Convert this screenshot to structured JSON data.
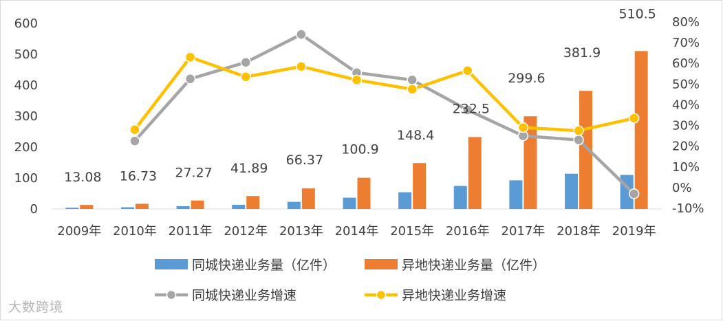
{
  "chart_data": {
    "type": "bar",
    "categories": [
      "2009年",
      "2010年",
      "2011年",
      "2012年",
      "2013年",
      "2014年",
      "2015年",
      "2016年",
      "2017年",
      "2018年",
      "2019年"
    ],
    "series": [
      {
        "name": "同城快递业务量（亿件）",
        "type": "bar",
        "axis": "left",
        "color": "#5b9bd5",
        "values": [
          4,
          5.5,
          9,
          13.5,
          23,
          36.5,
          54,
          74.5,
          92.5,
          114,
          110
        ]
      },
      {
        "name": "异地快递业务量（亿件）",
        "type": "bar",
        "axis": "left",
        "color": "#ed7d31",
        "values": [
          13.08,
          16.73,
          27.27,
          41.89,
          66.37,
          100.9,
          148.4,
          232.5,
          299.6,
          381.9,
          510.5
        ],
        "labels": [
          "13.08",
          "16.73",
          "27.27",
          "41.89",
          "66.37",
          "100.9",
          "148.4",
          "232.5",
          "299.6",
          "381.9",
          "510.5"
        ]
      },
      {
        "name": "同城快递业务增速",
        "type": "line",
        "axis": "right",
        "color": "#a5a5a5",
        "values": [
          null,
          0.225,
          0.525,
          0.605,
          0.74,
          0.555,
          0.52,
          0.375,
          0.25,
          0.23,
          -0.03
        ]
      },
      {
        "name": "异地快递业务增速",
        "type": "line",
        "axis": "right",
        "color": "#ffc000",
        "values": [
          null,
          0.28,
          0.63,
          0.535,
          0.585,
          0.52,
          0.475,
          0.565,
          0.29,
          0.275,
          0.335
        ]
      }
    ],
    "y_left": {
      "min": 0,
      "max": 600,
      "ticks": [
        "0",
        "100",
        "200",
        "300",
        "400",
        "500",
        "600"
      ]
    },
    "y_right": {
      "min": -0.1,
      "max": 0.8,
      "ticks": [
        "-10%",
        "0%",
        "10%",
        "20%",
        "30%",
        "40%",
        "50%",
        "60%",
        "70%",
        "80%"
      ]
    },
    "legend_position": "bottom",
    "grid": false
  },
  "watermark": "大数跨境"
}
